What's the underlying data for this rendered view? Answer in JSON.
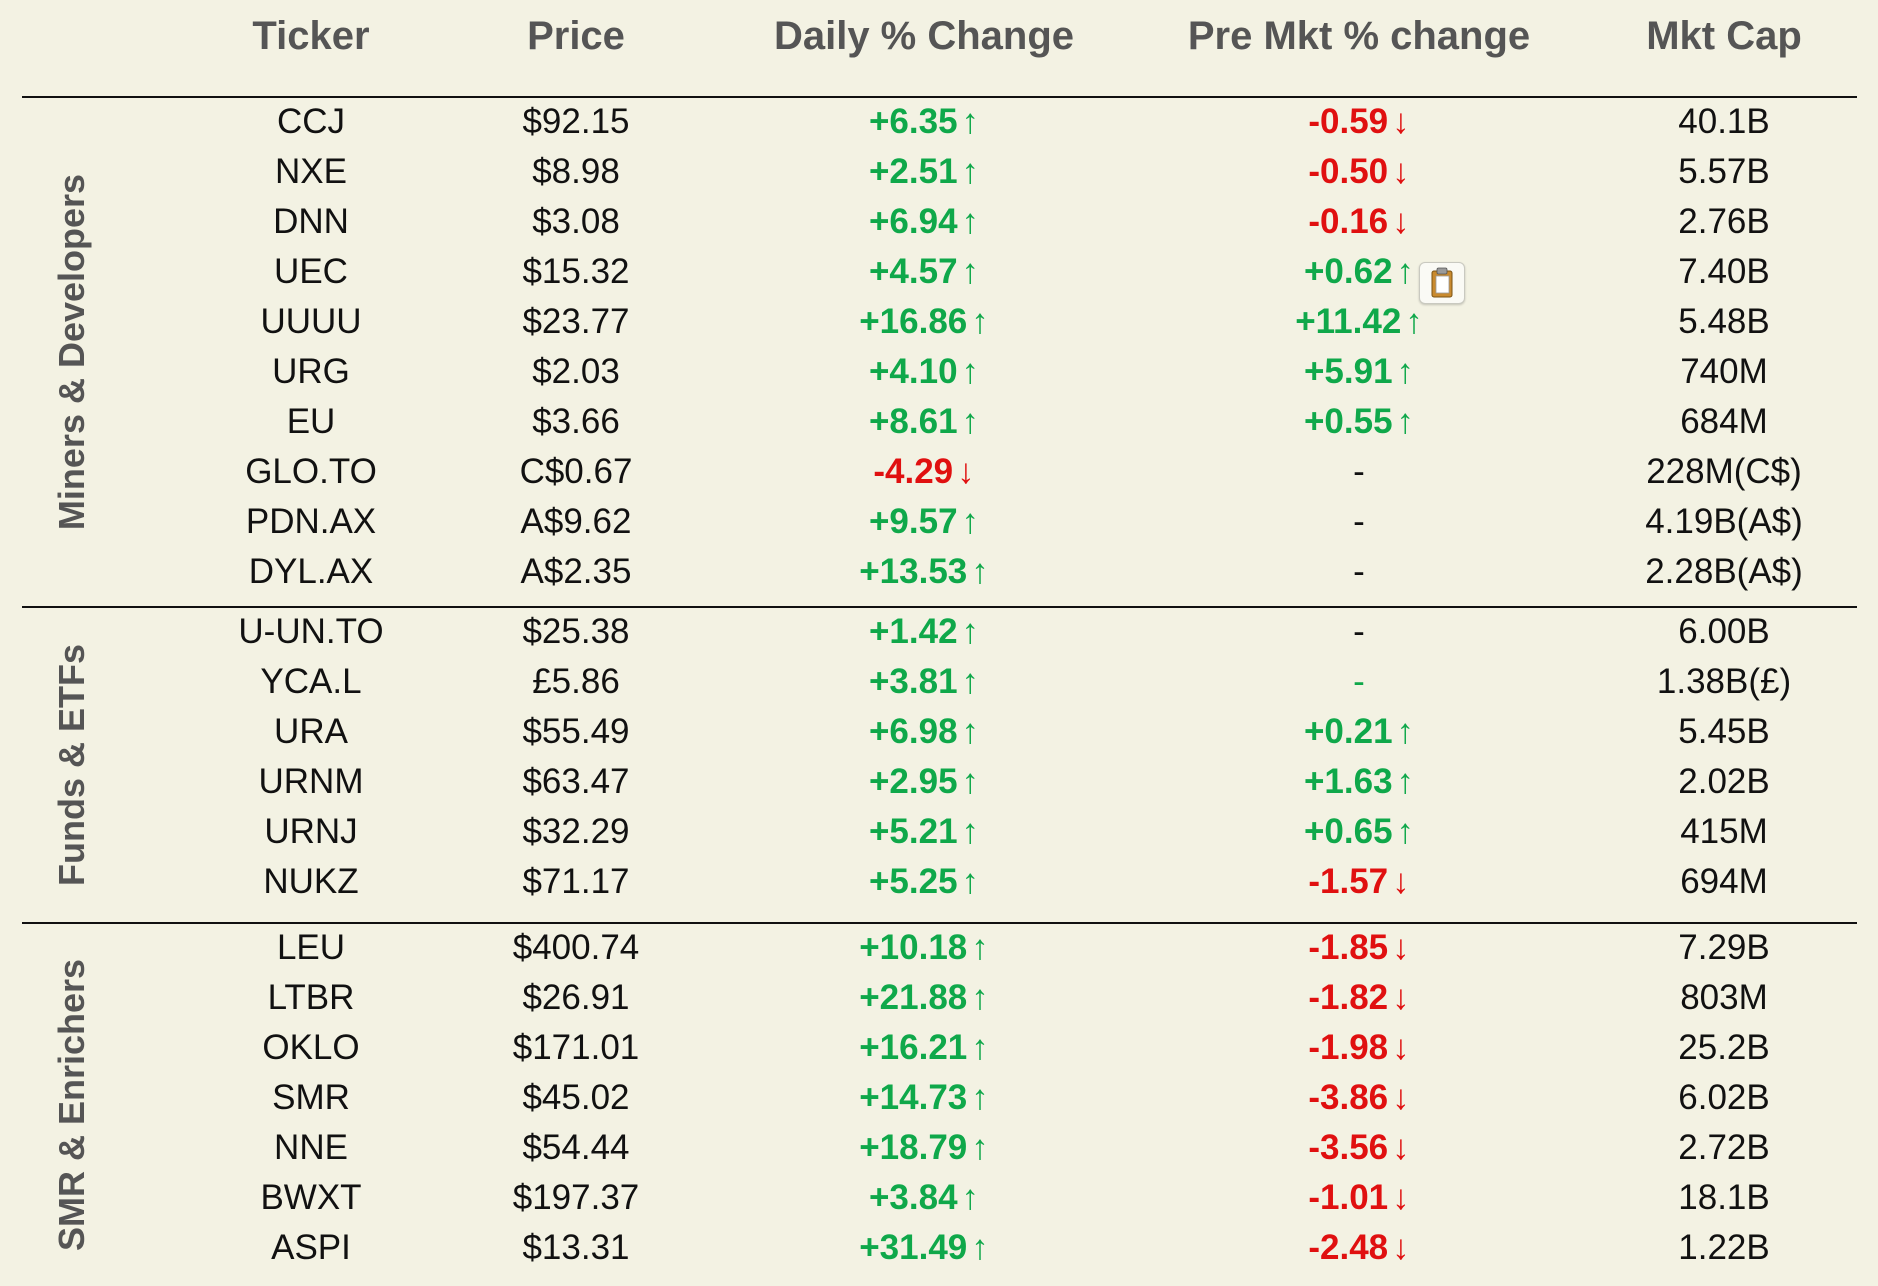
{
  "headers": {
    "ticker": "Ticker",
    "price": "Price",
    "daily": "Daily % Change",
    "premkt": "Pre Mkt % change",
    "mktcap": "Mkt Cap"
  },
  "colors": {
    "up": "#0fa84a",
    "down": "#e01010",
    "background": "#f3f2e3",
    "header_text": "#555555"
  },
  "icons": {
    "paste_icon": "clipboard-icon"
  },
  "groups": [
    {
      "label": "Miners & Developers",
      "rows": [
        {
          "ticker": "CCJ",
          "price": "$92.15",
          "daily": "+6.35",
          "daily_dir": "up",
          "pre": "-0.59",
          "pre_dir": "down",
          "cap": "40.1B"
        },
        {
          "ticker": "NXE",
          "price": "$8.98",
          "daily": "+2.51",
          "daily_dir": "up",
          "pre": "-0.50",
          "pre_dir": "down",
          "cap": "5.57B"
        },
        {
          "ticker": "DNN",
          "price": "$3.08",
          "daily": "+6.94",
          "daily_dir": "up",
          "pre": "-0.16",
          "pre_dir": "down",
          "cap": "2.76B"
        },
        {
          "ticker": "UEC",
          "price": "$15.32",
          "daily": "+4.57",
          "daily_dir": "up",
          "pre": "+0.62",
          "pre_dir": "up",
          "cap": "7.40B"
        },
        {
          "ticker": "UUUU",
          "price": "$23.77",
          "daily": "+16.86",
          "daily_dir": "up",
          "pre": "+11.42",
          "pre_dir": "up",
          "cap": "5.48B"
        },
        {
          "ticker": "URG",
          "price": "$2.03",
          "daily": "+4.10",
          "daily_dir": "up",
          "pre": "+5.91",
          "pre_dir": "up",
          "cap": "740M"
        },
        {
          "ticker": "EU",
          "price": "$3.66",
          "daily": "+8.61",
          "daily_dir": "up",
          "pre": "+0.55",
          "pre_dir": "up",
          "cap": "684M"
        },
        {
          "ticker": "GLO.TO",
          "price": "C$0.67",
          "daily": "-4.29",
          "daily_dir": "down",
          "pre": "-",
          "pre_dir": "none",
          "cap": "228M(C$)"
        },
        {
          "ticker": "PDN.AX",
          "price": "A$9.62",
          "daily": "+9.57",
          "daily_dir": "up",
          "pre": "-",
          "pre_dir": "none",
          "cap": "4.19B(A$)"
        },
        {
          "ticker": "DYL.AX",
          "price": "A$2.35",
          "daily": "+13.53",
          "daily_dir": "up",
          "pre": "-",
          "pre_dir": "none",
          "cap": "2.28B(A$)"
        }
      ]
    },
    {
      "label": "Funds & ETFs",
      "rows": [
        {
          "ticker": "U-UN.TO",
          "price": "$25.38",
          "daily": "+1.42",
          "daily_dir": "up",
          "pre": "-",
          "pre_dir": "none",
          "cap": "6.00B"
        },
        {
          "ticker": "YCA.L",
          "price": "£5.86",
          "daily": "+3.81",
          "daily_dir": "up",
          "pre": "-",
          "pre_dir": "none-green",
          "cap": "1.38B(£)"
        },
        {
          "ticker": "URA",
          "price": "$55.49",
          "daily": "+6.98",
          "daily_dir": "up",
          "pre": "+0.21",
          "pre_dir": "up",
          "cap": "5.45B"
        },
        {
          "ticker": "URNM",
          "price": "$63.47",
          "daily": "+2.95",
          "daily_dir": "up",
          "pre": "+1.63",
          "pre_dir": "up",
          "cap": "2.02B"
        },
        {
          "ticker": "URNJ",
          "price": "$32.29",
          "daily": "+5.21",
          "daily_dir": "up",
          "pre": "+0.65",
          "pre_dir": "up",
          "cap": "415M"
        },
        {
          "ticker": "NUKZ",
          "price": "$71.17",
          "daily": "+5.25",
          "daily_dir": "up",
          "pre": "-1.57",
          "pre_dir": "down",
          "cap": "694M"
        }
      ]
    },
    {
      "label": "SMR & Enrichers",
      "rows": [
        {
          "ticker": "LEU",
          "price": "$400.74",
          "daily": "+10.18",
          "daily_dir": "up",
          "pre": "-1.85",
          "pre_dir": "down",
          "cap": "7.29B"
        },
        {
          "ticker": "LTBR",
          "price": "$26.91",
          "daily": "+21.88",
          "daily_dir": "up",
          "pre": "-1.82",
          "pre_dir": "down",
          "cap": "803M"
        },
        {
          "ticker": "OKLO",
          "price": "$171.01",
          "daily": "+16.21",
          "daily_dir": "up",
          "pre": "-1.98",
          "pre_dir": "down",
          "cap": "25.2B"
        },
        {
          "ticker": "SMR",
          "price": "$45.02",
          "daily": "+14.73",
          "daily_dir": "up",
          "pre": "-3.86",
          "pre_dir": "down",
          "cap": "6.02B"
        },
        {
          "ticker": "NNE",
          "price": "$54.44",
          "daily": "+18.79",
          "daily_dir": "up",
          "pre": "-3.56",
          "pre_dir": "down",
          "cap": "2.72B"
        },
        {
          "ticker": "BWXT",
          "price": "$197.37",
          "daily": "+3.84",
          "daily_dir": "up",
          "pre": "-1.01",
          "pre_dir": "down",
          "cap": "18.1B"
        },
        {
          "ticker": "ASPI",
          "price": "$13.31",
          "daily": "+31.49",
          "daily_dir": "up",
          "pre": "-2.48",
          "pre_dir": "down",
          "cap": "1.22B"
        }
      ]
    }
  ]
}
